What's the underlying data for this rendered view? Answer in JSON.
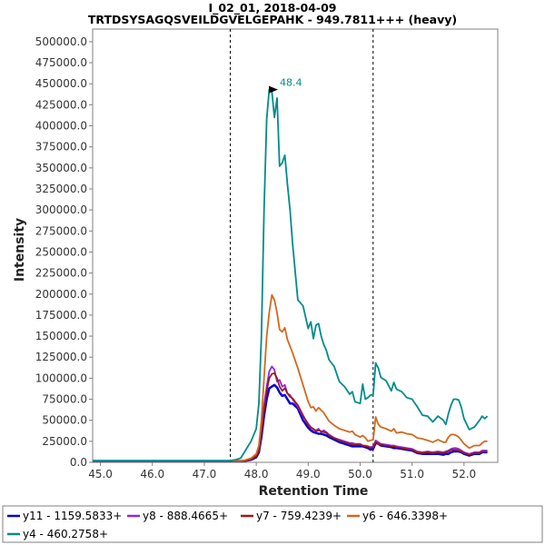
{
  "chart_data": {
    "type": "line",
    "title": "I_02_01, 2018-04-09",
    "subtitle": "TRTDSYSAGQSVEILDGVELGEPAHK - 949.7811+++ (heavy)",
    "xlabel": "Retention Time",
    "ylabel": "Intensity",
    "xlim": [
      44.85,
      52.65
    ],
    "ylim": [
      0,
      515000
    ],
    "x_ticks": [
      "45.0",
      "46.0",
      "47.0",
      "48.0",
      "49.0",
      "50.0",
      "51.0",
      "52.0"
    ],
    "x_tick_values": [
      45,
      46,
      47,
      48,
      49,
      50,
      51,
      52
    ],
    "y_ticks": [
      "0.0",
      "25000.0",
      "50000.0",
      "75000.0",
      "100000.0",
      "125000.0",
      "150000.0",
      "175000.0",
      "200000.0",
      "225000.0",
      "250000.0",
      "275000.0",
      "300000.0",
      "325000.0",
      "350000.0",
      "375000.0",
      "400000.0",
      "425000.0",
      "450000.0",
      "475000.0",
      "500000.0"
    ],
    "y_tick_values": [
      0,
      25000,
      50000,
      75000,
      100000,
      125000,
      150000,
      175000,
      200000,
      225000,
      250000,
      275000,
      300000,
      325000,
      350000,
      375000,
      400000,
      425000,
      450000,
      475000,
      500000
    ],
    "grid": false,
    "legend_position": "bottom",
    "boundaries": [
      47.5,
      50.25
    ],
    "peak_annotation": {
      "x": 48.4,
      "y": 443000,
      "label": "48.4",
      "color": "#008b8b"
    },
    "x": [
      44.85,
      47.0,
      47.3,
      47.5,
      47.6,
      47.7,
      47.8,
      47.9,
      48.0,
      48.05,
      48.1,
      48.15,
      48.2,
      48.25,
      48.3,
      48.35,
      48.4,
      48.45,
      48.5,
      48.55,
      48.6,
      48.65,
      48.7,
      48.8,
      48.9,
      49.0,
      49.05,
      49.1,
      49.15,
      49.2,
      49.25,
      49.3,
      49.35,
      49.4,
      49.5,
      49.6,
      49.7,
      49.8,
      49.85,
      49.9,
      50.0,
      50.05,
      50.1,
      50.15,
      50.2,
      50.25,
      50.3,
      50.35,
      50.4,
      50.5,
      50.6,
      50.65,
      50.7,
      50.8,
      50.9,
      51.0,
      51.1,
      51.2,
      51.3,
      51.4,
      51.5,
      51.6,
      51.65,
      51.7,
      51.75,
      51.8,
      51.85,
      51.9,
      51.95,
      52.0,
      52.1,
      52.2,
      52.3,
      52.35,
      52.4,
      52.45
    ],
    "series": [
      {
        "name": "y11 - 1159.5833+",
        "color": "#0000dd",
        "values": [
          1500,
          1500,
          1500,
          1500,
          1500,
          1500,
          2000,
          3000,
          6000,
          12000,
          30000,
          55000,
          75000,
          88000,
          90000,
          92000,
          89000,
          83000,
          79000,
          80000,
          75000,
          70000,
          70000,
          64000,
          50000,
          41000,
          38000,
          36000,
          35000,
          34000,
          34000,
          33000,
          32000,
          30000,
          27000,
          24000,
          22000,
          20000,
          19000,
          19000,
          19000,
          19000,
          18000,
          17000,
          15000,
          16000,
          23000,
          22000,
          20000,
          19000,
          18000,
          17000,
          17000,
          16000,
          15000,
          14000,
          11000,
          10000,
          10000,
          10000,
          10000,
          9000,
          10000,
          10000,
          12000,
          13000,
          13000,
          13000,
          12000,
          10000,
          8000,
          10000,
          10000,
          12000,
          12000,
          12000
        ]
      },
      {
        "name": "y8 - 888.4665+",
        "color": "#8a2be2",
        "values": [
          1500,
          1500,
          1500,
          1500,
          1500,
          1500,
          2500,
          4000,
          8000,
          15000,
          38000,
          68000,
          90000,
          108000,
          114000,
          110000,
          96000,
          98000,
          90000,
          92000,
          82000,
          80000,
          75000,
          66000,
          55000,
          46000,
          42000,
          39000,
          38000,
          40000,
          36000,
          38000,
          36000,
          33000,
          29000,
          27000,
          25000,
          23000,
          23000,
          22000,
          22000,
          20000,
          20000,
          19000,
          18000,
          19000,
          26000,
          24000,
          22000,
          21000,
          20000,
          20000,
          19000,
          18000,
          17000,
          16000,
          13000,
          12000,
          13000,
          12000,
          13000,
          12000,
          13000,
          14000,
          16000,
          17000,
          17000,
          16000,
          14000,
          12000,
          10000,
          12000,
          12000,
          14000,
          14000,
          14000
        ]
      },
      {
        "name": "y7 - 759.4239+",
        "color": "#a01818",
        "values": [
          1500,
          1500,
          1500,
          1500,
          1500,
          1500,
          2000,
          3500,
          7000,
          14000,
          35000,
          62000,
          85000,
          100000,
          105000,
          106000,
          100000,
          90000,
          85000,
          88000,
          82000,
          78000,
          76000,
          68000,
          56000,
          44000,
          41000,
          40000,
          37000,
          38000,
          37000,
          36000,
          35000,
          32000,
          29000,
          26000,
          24000,
          22000,
          21000,
          21000,
          21000,
          20000,
          19000,
          19000,
          17000,
          18000,
          24000,
          22000,
          21000,
          20000,
          19000,
          19000,
          18000,
          17000,
          16000,
          15000,
          12000,
          11000,
          12000,
          11000,
          12000,
          11000,
          12000,
          13000,
          15000,
          15000,
          15000,
          14000,
          13000,
          11000,
          9000,
          11000,
          11000,
          13000,
          13000,
          13000
        ]
      },
      {
        "name": "y6 - 646.3398+",
        "color": "#d2691e",
        "values": [
          1500,
          1500,
          1500,
          1500,
          1500,
          1500,
          3000,
          5000,
          10000,
          20000,
          50000,
          100000,
          150000,
          178000,
          199000,
          193000,
          178000,
          158000,
          155000,
          160000,
          146000,
          138000,
          130000,
          112000,
          92000,
          72000,
          65000,
          66000,
          61000,
          65000,
          62000,
          59000,
          54000,
          49000,
          44000,
          40000,
          38000,
          36000,
          37000,
          33000,
          30000,
          32000,
          29000,
          25000,
          26000,
          27000,
          54000,
          45000,
          42000,
          40000,
          37000,
          40000,
          35000,
          36000,
          34000,
          33000,
          29000,
          28000,
          26000,
          24000,
          27000,
          24000,
          24000,
          30000,
          33000,
          33000,
          32000,
          30000,
          26000,
          22000,
          17000,
          20000,
          20000,
          23000,
          25000,
          25000
        ]
      },
      {
        "name": "y4 - 460.2758+",
        "color": "#008b8b",
        "values": [
          2000,
          2000,
          2000,
          2000,
          3000,
          5000,
          15000,
          25000,
          40000,
          70000,
          150000,
          300000,
          408000,
          443000,
          441000,
          410000,
          433000,
          352000,
          356000,
          365000,
          331000,
          300000,
          260000,
          193000,
          186000,
          159000,
          167000,
          147000,
          163000,
          165000,
          150000,
          140000,
          133000,
          122000,
          114000,
          96000,
          90000,
          81000,
          84000,
          72000,
          70000,
          93000,
          75000,
          77000,
          80000,
          80000,
          118000,
          112000,
          101000,
          97000,
          85000,
          95000,
          87000,
          84000,
          77000,
          75000,
          66000,
          56000,
          55000,
          48000,
          55000,
          50000,
          45000,
          58000,
          68000,
          75000,
          75000,
          74000,
          65000,
          52000,
          39000,
          42000,
          50000,
          55000,
          52000,
          55000
        ]
      }
    ]
  }
}
